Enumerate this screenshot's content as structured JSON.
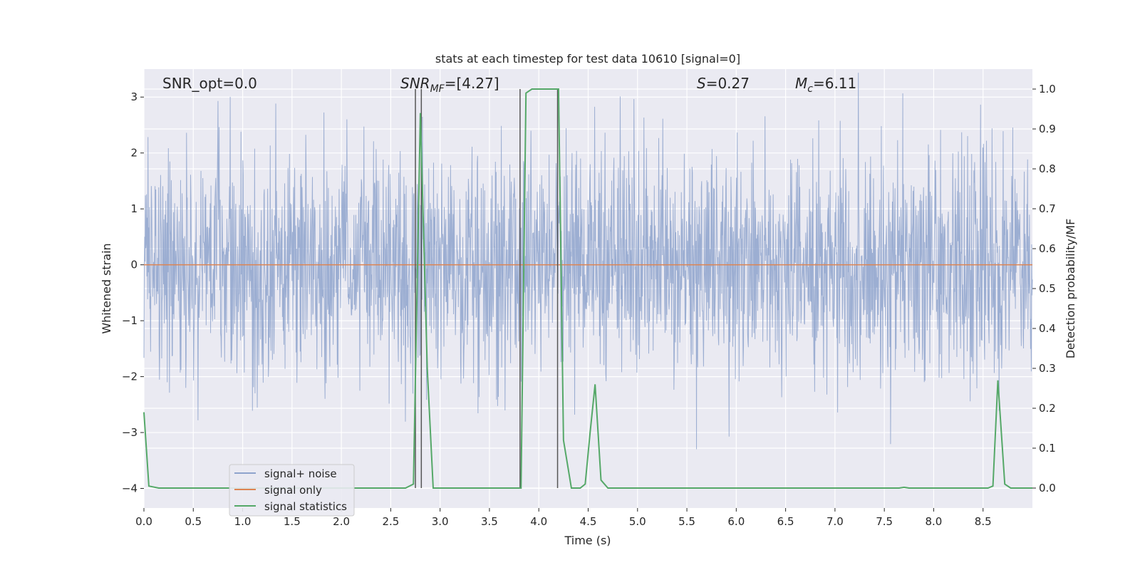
{
  "chart_data": {
    "type": "line",
    "title": "stats at each timestep for test data 10610 [signal=0]",
    "xlabel": "Time (s)",
    "ylabel_left": "Whitened strain",
    "ylabel_right": "Detection probability/MF",
    "xlim": [
      0.0,
      9.0
    ],
    "ylim_left": [
      -4.35,
      3.5
    ],
    "ylim_right": [
      -0.05,
      1.05
    ],
    "x_ticks": [
      "0.0",
      "0.5",
      "1.0",
      "1.5",
      "2.0",
      "2.5",
      "3.0",
      "3.5",
      "4.0",
      "4.5",
      "5.0",
      "5.5",
      "6.0",
      "6.5",
      "7.0",
      "7.5",
      "8.0",
      "8.5"
    ],
    "y_ticks_left": [
      "3",
      "2",
      "1",
      "0",
      "−1",
      "−2",
      "−3",
      "−4"
    ],
    "y_ticks_right": [
      "1.0",
      "0.9",
      "0.8",
      "0.7",
      "0.6",
      "0.5",
      "0.4",
      "0.3",
      "0.2",
      "0.1",
      "0.0"
    ],
    "grid": true,
    "legend_position": "lower-left",
    "annotations": {
      "snr_opt": "SNR_opt=0.0",
      "snr_mf_base": "SNR",
      "snr_mf_sub": "MF",
      "snr_mf_rest": "=[4.27]",
      "s_var": "S",
      "s_rest": "=0.27",
      "mc_var": "M",
      "mc_sub": "c",
      "mc_rest": "=6.11"
    },
    "series": [
      {
        "name": "signal+ noise",
        "axis": "left",
        "color": "#8ea3cc",
        "style": "dense noise, approx. zero mean, unit variance"
      },
      {
        "name": "signal only",
        "axis": "left",
        "color": "#dd8452",
        "x": [
          0.0,
          9.0
        ],
        "y": [
          0.0,
          0.0
        ]
      },
      {
        "name": "signal statistics",
        "axis": "right",
        "color": "#55a868",
        "x": [
          0.0,
          0.05,
          0.15,
          2.65,
          2.73,
          2.8,
          2.87,
          2.93,
          3.82,
          3.87,
          3.93,
          4.2,
          4.25,
          4.33,
          4.42,
          4.47,
          4.52,
          4.57,
          4.63,
          4.7,
          7.65,
          7.7,
          7.75,
          8.55,
          8.6,
          8.65,
          8.72,
          8.78,
          8.85,
          9.0
        ],
        "y": [
          0.19,
          0.005,
          0.0,
          0.0,
          0.01,
          0.94,
          0.3,
          0.0,
          0.0,
          0.99,
          1.0,
          1.0,
          0.12,
          0.0,
          0.0,
          0.01,
          0.14,
          0.26,
          0.02,
          0.0,
          0.0,
          0.002,
          0.0,
          0.0,
          0.005,
          0.27,
          0.01,
          0.0,
          0.0,
          0.0
        ]
      }
    ],
    "vlines_x": [
      2.75,
      2.81,
      3.81,
      4.19
    ]
  }
}
